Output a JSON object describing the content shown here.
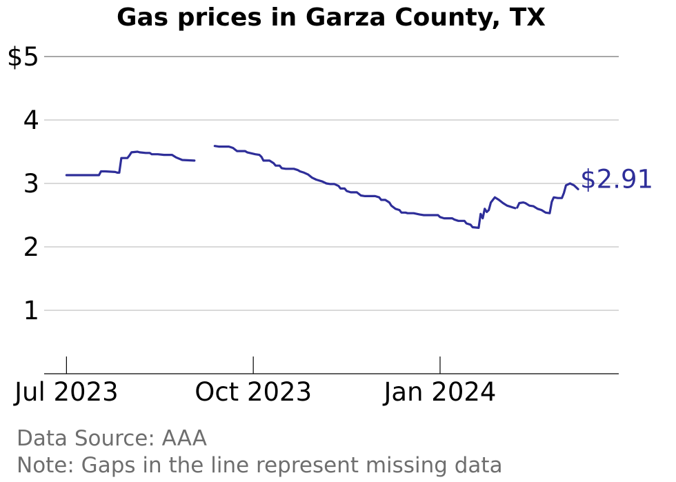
{
  "chart_data": {
    "type": "line",
    "title": "Gas prices in Garza County, TX",
    "xlabel": "",
    "ylabel": "",
    "y_ticks": [
      {
        "value": 1,
        "label": "1"
      },
      {
        "value": 2,
        "label": "2"
      },
      {
        "value": 3,
        "label": "3"
      },
      {
        "value": 4,
        "label": "4"
      },
      {
        "value": 5,
        "label": "$5"
      }
    ],
    "x_ticks": [
      {
        "date": "2023-07-01",
        "label": "Jul 2023"
      },
      {
        "date": "2023-10-01",
        "label": "Oct 2023"
      },
      {
        "date": "2024-01-01",
        "label": "Jan 2024"
      }
    ],
    "xlim": [
      "2023-06-20",
      "2024-03-29"
    ],
    "ylim": [
      0,
      5
    ],
    "grid": "horizontal",
    "line_color": "#2e2e99",
    "end_label": "$2.91",
    "series": [
      {
        "segments": [
          [
            [
              "2023-07-01",
              3.13
            ],
            [
              "2023-07-17",
              3.13
            ],
            [
              "2023-07-18",
              3.19
            ],
            [
              "2023-07-20",
              3.19
            ],
            [
              "2023-07-25",
              3.18
            ],
            [
              "2023-07-26",
              3.17
            ],
            [
              "2023-07-27",
              3.17
            ],
            [
              "2023-07-28",
              3.4
            ],
            [
              "2023-07-31",
              3.4
            ],
            [
              "2023-08-01",
              3.44
            ],
            [
              "2023-08-02",
              3.49
            ],
            [
              "2023-08-05",
              3.5
            ],
            [
              "2023-08-06",
              3.49
            ],
            [
              "2023-08-09",
              3.48
            ],
            [
              "2023-08-11",
              3.48
            ],
            [
              "2023-08-12",
              3.46
            ],
            [
              "2023-08-15",
              3.46
            ],
            [
              "2023-08-18",
              3.45
            ],
            [
              "2023-08-22",
              3.45
            ],
            [
              "2023-08-24",
              3.41
            ],
            [
              "2023-08-27",
              3.37
            ],
            [
              "2023-09-02",
              3.36
            ]
          ],
          [
            [
              "2023-09-12",
              3.59
            ],
            [
              "2023-09-14",
              3.58
            ],
            [
              "2023-09-19",
              3.58
            ],
            [
              "2023-09-21",
              3.56
            ],
            [
              "2023-09-23",
              3.51
            ],
            [
              "2023-09-27",
              3.51
            ],
            [
              "2023-09-28",
              3.49
            ],
            [
              "2023-10-02",
              3.46
            ],
            [
              "2023-10-04",
              3.45
            ],
            [
              "2023-10-05",
              3.42
            ],
            [
              "2023-10-06",
              3.36
            ],
            [
              "2023-10-09",
              3.36
            ],
            [
              "2023-10-11",
              3.32
            ],
            [
              "2023-10-12",
              3.28
            ],
            [
              "2023-10-14",
              3.28
            ],
            [
              "2023-10-15",
              3.24
            ],
            [
              "2023-10-17",
              3.23
            ],
            [
              "2023-10-21",
              3.23
            ],
            [
              "2023-10-23",
              3.21
            ],
            [
              "2023-10-24",
              3.19
            ],
            [
              "2023-10-26",
              3.17
            ],
            [
              "2023-10-28",
              3.14
            ],
            [
              "2023-10-30",
              3.09
            ],
            [
              "2023-11-01",
              3.06
            ],
            [
              "2023-11-04",
              3.03
            ],
            [
              "2023-11-06",
              3.0
            ],
            [
              "2023-11-08",
              2.99
            ],
            [
              "2023-11-10",
              2.99
            ],
            [
              "2023-11-12",
              2.96
            ],
            [
              "2023-11-13",
              2.92
            ],
            [
              "2023-11-15",
              2.92
            ],
            [
              "2023-11-16",
              2.88
            ],
            [
              "2023-11-18",
              2.86
            ],
            [
              "2023-11-21",
              2.86
            ],
            [
              "2023-11-23",
              2.81
            ],
            [
              "2023-11-25",
              2.8
            ],
            [
              "2023-11-28",
              2.8
            ],
            [
              "2023-11-30",
              2.8
            ],
            [
              "2023-12-02",
              2.78
            ],
            [
              "2023-12-03",
              2.74
            ],
            [
              "2023-12-05",
              2.74
            ],
            [
              "2023-12-07",
              2.7
            ],
            [
              "2023-12-08",
              2.65
            ],
            [
              "2023-12-10",
              2.6
            ],
            [
              "2023-12-12",
              2.58
            ],
            [
              "2023-12-13",
              2.54
            ],
            [
              "2023-12-15",
              2.54
            ],
            [
              "2023-12-16",
              2.53
            ],
            [
              "2023-12-19",
              2.53
            ],
            [
              "2023-12-22",
              2.51
            ],
            [
              "2023-12-24",
              2.5
            ],
            [
              "2023-12-28",
              2.5
            ],
            [
              "2023-12-31",
              2.5
            ],
            [
              "2024-01-01",
              2.47
            ],
            [
              "2024-01-03",
              2.45
            ],
            [
              "2024-01-07",
              2.45
            ],
            [
              "2024-01-08",
              2.43
            ],
            [
              "2024-01-10",
              2.41
            ],
            [
              "2024-01-13",
              2.41
            ],
            [
              "2024-01-14",
              2.37
            ],
            [
              "2024-01-16",
              2.35
            ],
            [
              "2024-01-17",
              2.31
            ],
            [
              "2024-01-20",
              2.3
            ],
            [
              "2024-01-21",
              2.52
            ],
            [
              "2024-01-22",
              2.45
            ],
            [
              "2024-01-23",
              2.6
            ],
            [
              "2024-01-24",
              2.55
            ],
            [
              "2024-01-25",
              2.58
            ],
            [
              "2024-01-26",
              2.7
            ],
            [
              "2024-01-28",
              2.78
            ],
            [
              "2024-01-30",
              2.74
            ],
            [
              "2024-02-01",
              2.69
            ],
            [
              "2024-02-03",
              2.65
            ],
            [
              "2024-02-06",
              2.62
            ],
            [
              "2024-02-07",
              2.61
            ]
          ],
          [
            [
              "2024-02-08",
              2.62
            ],
            [
              "2024-02-09",
              2.69
            ],
            [
              "2024-02-11",
              2.7
            ],
            [
              "2024-02-12",
              2.69
            ],
            [
              "2024-02-14",
              2.65
            ],
            [
              "2024-02-16",
              2.64
            ],
            [
              "2024-02-18",
              2.6
            ],
            [
              "2024-02-20",
              2.58
            ],
            [
              "2024-02-22",
              2.54
            ],
            [
              "2024-02-24",
              2.53
            ],
            [
              "2024-02-25",
              2.71
            ],
            [
              "2024-02-26",
              2.78
            ],
            [
              "2024-02-28",
              2.77
            ],
            [
              "2024-03-01",
              2.77
            ],
            [
              "2024-03-02",
              2.85
            ],
            [
              "2024-03-03",
              2.97
            ],
            [
              "2024-03-05",
              3.0
            ],
            [
              "2024-03-07",
              2.97
            ],
            [
              "2024-03-09",
              2.91
            ]
          ]
        ]
      }
    ]
  },
  "footer": {
    "source": "Data Source: AAA",
    "note": "Note: Gaps in the line represent missing data"
  }
}
